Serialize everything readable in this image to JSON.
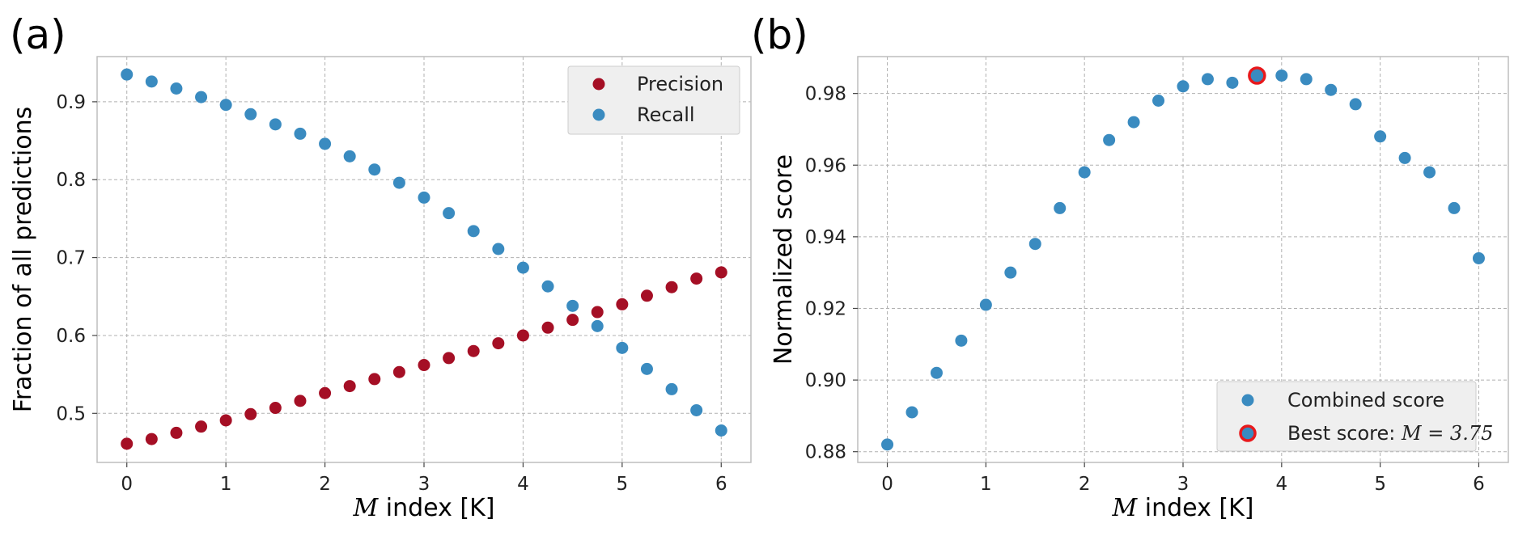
{
  "chart_data": [
    {
      "type": "scatter",
      "panel_label": "(a)",
      "xlabel_var": "M",
      "xlabel_text": " index [K]",
      "ylabel": "Fraction of all predictions",
      "xlim": [
        -0.3,
        6.3
      ],
      "ylim": [
        0.437,
        0.958
      ],
      "xticks": [
        0,
        1,
        2,
        3,
        4,
        5,
        6
      ],
      "yticks": [
        0.5,
        0.6,
        0.7,
        0.8,
        0.9
      ],
      "ytick_labels": [
        "0.5",
        "0.6",
        "0.7",
        "0.8",
        "0.9"
      ],
      "grid": true,
      "legend_position": "top-right",
      "series": [
        {
          "name": "Precision",
          "color": "#a50f25",
          "x": [
            0,
            0.25,
            0.5,
            0.75,
            1,
            1.25,
            1.5,
            1.75,
            2,
            2.25,
            2.5,
            2.75,
            3,
            3.25,
            3.5,
            3.75,
            4,
            4.25,
            4.5,
            4.75,
            5,
            5.25,
            5.5,
            5.75,
            6
          ],
          "y": [
            0.461,
            0.467,
            0.475,
            0.483,
            0.491,
            0.499,
            0.507,
            0.516,
            0.526,
            0.535,
            0.544,
            0.553,
            0.562,
            0.571,
            0.58,
            0.59,
            0.6,
            0.61,
            0.62,
            0.63,
            0.64,
            0.651,
            0.662,
            0.673,
            0.681
          ]
        },
        {
          "name": "Recall",
          "color": "#3a8bc0",
          "x": [
            0,
            0.25,
            0.5,
            0.75,
            1,
            1.25,
            1.5,
            1.75,
            2,
            2.25,
            2.5,
            2.75,
            3,
            3.25,
            3.5,
            3.75,
            4,
            4.25,
            4.5,
            4.75,
            5,
            5.25,
            5.5,
            5.75,
            6
          ],
          "y": [
            0.935,
            0.926,
            0.917,
            0.906,
            0.896,
            0.884,
            0.871,
            0.859,
            0.846,
            0.83,
            0.813,
            0.796,
            0.777,
            0.757,
            0.734,
            0.711,
            0.687,
            0.663,
            0.638,
            0.612,
            0.584,
            0.557,
            0.531,
            0.504,
            0.478
          ]
        }
      ]
    },
    {
      "type": "scatter",
      "panel_label": "(b)",
      "xlabel_var": "M",
      "xlabel_text": " index [K]",
      "ylabel": "Normalized score",
      "xlim": [
        -0.3,
        6.3
      ],
      "ylim": [
        0.877,
        0.9903
      ],
      "xticks": [
        0,
        1,
        2,
        3,
        4,
        5,
        6
      ],
      "yticks": [
        0.88,
        0.9,
        0.92,
        0.94,
        0.96,
        0.98
      ],
      "ytick_labels": [
        "0.88",
        "0.90",
        "0.92",
        "0.94",
        "0.96",
        "0.98"
      ],
      "grid": true,
      "legend_position": "bottom-right",
      "series": [
        {
          "name": "Combined score",
          "color": "#3a8bc0",
          "x": [
            0,
            0.25,
            0.5,
            0.75,
            1,
            1.25,
            1.5,
            1.75,
            2,
            2.25,
            2.5,
            2.75,
            3,
            3.25,
            3.5,
            3.75,
            4,
            4.25,
            4.5,
            4.75,
            5,
            5.25,
            5.5,
            5.75,
            6
          ],
          "y": [
            0.882,
            0.891,
            0.902,
            0.911,
            0.921,
            0.93,
            0.938,
            0.948,
            0.958,
            0.967,
            0.972,
            0.978,
            0.982,
            0.984,
            0.983,
            0.985,
            0.985,
            0.984,
            0.981,
            0.977,
            0.968,
            0.962,
            0.958,
            0.948,
            0.934
          ]
        }
      ],
      "highlight": {
        "label_prefix": "Best score: ",
        "label_math": "M = 3.75",
        "x": 3.75,
        "y": 0.985,
        "edge_color": "#e8191c",
        "fill_color": "#3a8bc0"
      }
    }
  ]
}
